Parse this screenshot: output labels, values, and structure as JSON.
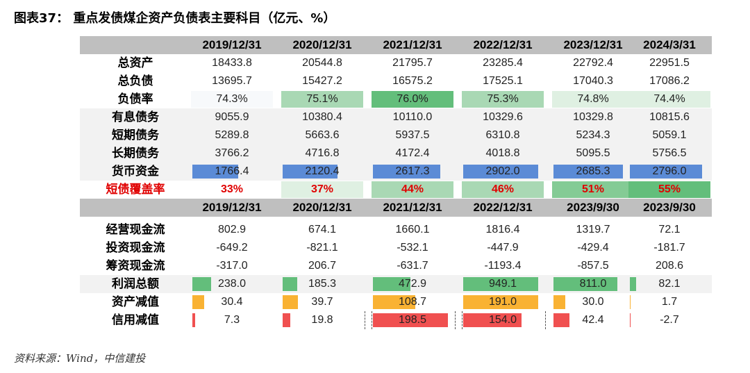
{
  "title": "图表37：    重点发债煤企资产负债表主要科目（亿元、%）",
  "source": "资料来源：Wind，中信建投",
  "colors": {
    "header_bg": "#bfbfbf",
    "green_dark": "#63be7b",
    "green_mid": "#a9d8b4",
    "green_light": "#dff0e2",
    "blue": "#5b8bd6",
    "orange": "#f9b233",
    "red": "#f05050",
    "red_text": "#e00000"
  },
  "header1": [
    "2019/12/31",
    "2020/12/31",
    "2021/12/31",
    "2022/12/31",
    "2023/12/31",
    "2024/3/31"
  ],
  "header2": [
    "2019/12/31",
    "2020/12/31",
    "2021/12/31",
    "2022/12/31",
    "2023/9/30",
    "2023/9/30"
  ],
  "balance_rows": [
    {
      "label": "总资产",
      "values": [
        "18433.8",
        "20544.8",
        "21795.7",
        "23285.4",
        "22792.4",
        "22951.5"
      ]
    },
    {
      "label": "总负债",
      "values": [
        "13695.7",
        "15427.2",
        "16575.2",
        "17525.1",
        "17040.3",
        "17086.2"
      ]
    }
  ],
  "debt_ratio": {
    "label": "负债率",
    "values": [
      "74.3%",
      "75.1%",
      "76.0%",
      "75.3%",
      "74.8%",
      "74.4%"
    ],
    "numbers": [
      74.3,
      75.1,
      76.0,
      75.3,
      74.8,
      74.4
    ]
  },
  "debt_rows": [
    {
      "label": "有息债务",
      "values": [
        "9055.9",
        "10380.4",
        "10110.0",
        "10329.6",
        "10329.8",
        "10815.6"
      ]
    },
    {
      "label": "短期债务",
      "values": [
        "5289.8",
        "5663.6",
        "5937.5",
        "6310.8",
        "5234.3",
        "5059.1"
      ]
    },
    {
      "label": "长期债务",
      "values": [
        "3766.2",
        "4716.8",
        "4172.4",
        "4018.8",
        "5095.5",
        "5756.5"
      ]
    }
  ],
  "cash": {
    "label": "货币资金",
    "values": [
      "1766.4",
      "2120.4",
      "2617.3",
      "2902.0",
      "2685.3",
      "2796.0"
    ],
    "numbers": [
      1766.4,
      2120.4,
      2617.3,
      2902.0,
      2685.3,
      2796.0
    ]
  },
  "coverage": {
    "label": "短债覆盖率",
    "values": [
      "33%",
      "37%",
      "44%",
      "46%",
      "51%",
      "55%"
    ],
    "numbers": [
      33,
      37,
      44,
      46,
      51,
      55
    ]
  },
  "cashflow_rows": [
    {
      "label": "经营现金流",
      "values": [
        "802.9",
        "674.1",
        "1660.1",
        "1816.4",
        "1319.7",
        "72.1"
      ]
    },
    {
      "label": "投资现金流",
      "values": [
        "-649.2",
        "-821.1",
        "-532.1",
        "-447.9",
        "-429.4",
        "-181.7"
      ]
    },
    {
      "label": "筹资现金流",
      "values": [
        "-317.0",
        "206.7",
        "-631.7",
        "-1193.4",
        "-857.5",
        "208.6"
      ]
    }
  ],
  "profit": {
    "label": "利润总额",
    "values": [
      "238.0",
      "185.3",
      "472.9",
      "949.1",
      "811.0",
      "82.1"
    ],
    "numbers": [
      238.0,
      185.3,
      472.9,
      949.1,
      811.0,
      82.1
    ]
  },
  "asset_impair": {
    "label": "资产减值",
    "values": [
      "30.4",
      "39.7",
      "108.7",
      "191.0",
      "30.0",
      "1.7"
    ],
    "numbers": [
      30.4,
      39.7,
      108.7,
      191.0,
      30.0,
      1.7
    ]
  },
  "credit_impair": {
    "label": "信用减值",
    "values": [
      "7.3",
      "19.8",
      "198.5",
      "154.0",
      "42.4",
      "-2.7"
    ],
    "numbers": [
      7.3,
      19.8,
      198.5,
      154.0,
      42.4,
      -2.7
    ]
  }
}
